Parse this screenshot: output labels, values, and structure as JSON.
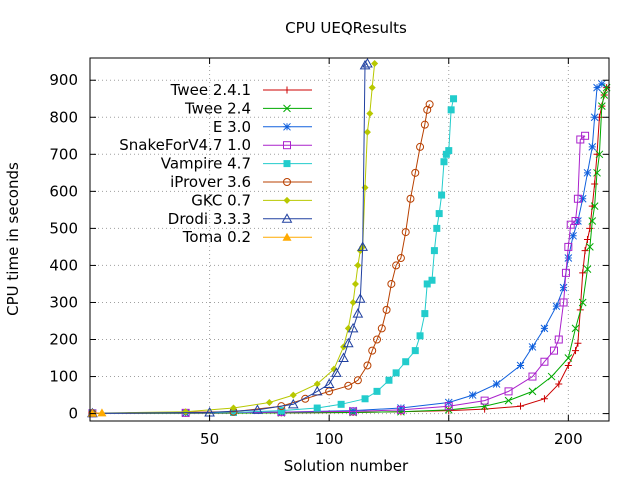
{
  "chart_data": {
    "type": "line",
    "title": "CPU UEQResults",
    "xlabel": "Solution number",
    "ylabel": "CPU time in seconds",
    "xlim": [
      0,
      217
    ],
    "ylim": [
      -20,
      960
    ],
    "x_ticks": [
      50,
      100,
      150,
      200
    ],
    "y_ticks": [
      0,
      100,
      200,
      300,
      400,
      500,
      600,
      700,
      800,
      900
    ],
    "grid": true,
    "legend_position": "top-left",
    "series": [
      {
        "name": "Twee 2.4.1",
        "color": "#cc0000",
        "marker": "plus",
        "points": [
          [
            1,
            1
          ],
          [
            40,
            1
          ],
          [
            80,
            2
          ],
          [
            110,
            3
          ],
          [
            130,
            5
          ],
          [
            150,
            8
          ],
          [
            165,
            12
          ],
          [
            180,
            20
          ],
          [
            190,
            40
          ],
          [
            196,
            80
          ],
          [
            200,
            130
          ],
          [
            203,
            170
          ],
          [
            204,
            190
          ],
          [
            205,
            280
          ],
          [
            206,
            380
          ],
          [
            207,
            440
          ],
          [
            208,
            470
          ],
          [
            209,
            500
          ],
          [
            210,
            560
          ],
          [
            211,
            620
          ],
          [
            212,
            700
          ],
          [
            213,
            800
          ],
          [
            214,
            830
          ],
          [
            215,
            860
          ],
          [
            216,
            880
          ]
        ]
      },
      {
        "name": "Twee 2.4",
        "color": "#00aa00",
        "marker": "x",
        "points": [
          [
            1,
            1
          ],
          [
            40,
            1
          ],
          [
            80,
            2
          ],
          [
            110,
            3
          ],
          [
            130,
            5
          ],
          [
            150,
            10
          ],
          [
            165,
            20
          ],
          [
            175,
            35
          ],
          [
            185,
            60
          ],
          [
            193,
            100
          ],
          [
            200,
            150
          ],
          [
            203,
            230
          ],
          [
            206,
            300
          ],
          [
            208,
            390
          ],
          [
            209,
            450
          ],
          [
            210,
            520
          ],
          [
            211,
            560
          ],
          [
            212,
            650
          ],
          [
            213,
            700
          ],
          [
            214,
            830
          ],
          [
            215,
            860
          ],
          [
            216,
            880
          ]
        ]
      },
      {
        "name": "E 3.0",
        "color": "#1060dd",
        "marker": "star",
        "points": [
          [
            1,
            1
          ],
          [
            40,
            2
          ],
          [
            80,
            4
          ],
          [
            110,
            8
          ],
          [
            130,
            15
          ],
          [
            150,
            30
          ],
          [
            160,
            50
          ],
          [
            170,
            80
          ],
          [
            180,
            130
          ],
          [
            185,
            180
          ],
          [
            190,
            230
          ],
          [
            195,
            290
          ],
          [
            198,
            340
          ],
          [
            200,
            420
          ],
          [
            202,
            480
          ],
          [
            204,
            520
          ],
          [
            206,
            580
          ],
          [
            208,
            650
          ],
          [
            210,
            720
          ],
          [
            211,
            800
          ],
          [
            212,
            880
          ],
          [
            214,
            890
          ]
        ]
      },
      {
        "name": "SnakeForV4.7 1.0",
        "color": "#aa22cc",
        "marker": "square-open",
        "points": [
          [
            1,
            1
          ],
          [
            40,
            2
          ],
          [
            80,
            4
          ],
          [
            110,
            6
          ],
          [
            130,
            10
          ],
          [
            150,
            20
          ],
          [
            165,
            35
          ],
          [
            175,
            60
          ],
          [
            185,
            100
          ],
          [
            190,
            140
          ],
          [
            194,
            170
          ],
          [
            196,
            200
          ],
          [
            198,
            300
          ],
          [
            199,
            380
          ],
          [
            200,
            450
          ],
          [
            201,
            510
          ],
          [
            203,
            520
          ],
          [
            204,
            580
          ],
          [
            205,
            740
          ],
          [
            207,
            750
          ]
        ]
      },
      {
        "name": "Vampire 4.7",
        "color": "#22cccc",
        "marker": "square-filled",
        "points": [
          [
            1,
            1
          ],
          [
            60,
            3
          ],
          [
            80,
            8
          ],
          [
            95,
            15
          ],
          [
            105,
            25
          ],
          [
            115,
            40
          ],
          [
            120,
            60
          ],
          [
            125,
            90
          ],
          [
            128,
            110
          ],
          [
            132,
            140
          ],
          [
            136,
            170
          ],
          [
            138,
            210
          ],
          [
            140,
            270
          ],
          [
            141,
            350
          ],
          [
            143,
            360
          ],
          [
            144,
            440
          ],
          [
            145,
            500
          ],
          [
            146,
            540
          ],
          [
            147,
            590
          ],
          [
            148,
            680
          ],
          [
            149,
            700
          ],
          [
            150,
            710
          ],
          [
            151,
            820
          ],
          [
            152,
            850
          ]
        ]
      },
      {
        "name": "iProver 3.6",
        "color": "#b84000",
        "marker": "circle-open",
        "points": [
          [
            1,
            1
          ],
          [
            60,
            5
          ],
          [
            80,
            20
          ],
          [
            90,
            40
          ],
          [
            100,
            60
          ],
          [
            108,
            75
          ],
          [
            112,
            90
          ],
          [
            116,
            130
          ],
          [
            118,
            170
          ],
          [
            120,
            200
          ],
          [
            122,
            230
          ],
          [
            124,
            280
          ],
          [
            126,
            350
          ],
          [
            128,
            400
          ],
          [
            130,
            420
          ],
          [
            132,
            490
          ],
          [
            134,
            580
          ],
          [
            136,
            650
          ],
          [
            138,
            720
          ],
          [
            140,
            780
          ],
          [
            141,
            820
          ],
          [
            142,
            835
          ]
        ]
      },
      {
        "name": "GKC 0.7",
        "color": "#b8c800",
        "marker": "diamond-filled",
        "points": [
          [
            1,
            1
          ],
          [
            40,
            5
          ],
          [
            60,
            15
          ],
          [
            75,
            30
          ],
          [
            85,
            50
          ],
          [
            95,
            80
          ],
          [
            102,
            120
          ],
          [
            106,
            180
          ],
          [
            108,
            230
          ],
          [
            110,
            300
          ],
          [
            111,
            350
          ],
          [
            112,
            400
          ],
          [
            113,
            440
          ],
          [
            114,
            450
          ],
          [
            115,
            610
          ],
          [
            116,
            760
          ],
          [
            117,
            810
          ],
          [
            118,
            880
          ],
          [
            119,
            945
          ]
        ]
      },
      {
        "name": "Drodi 3.3.3",
        "color": "#2040a0",
        "marker": "triangle-open",
        "points": [
          [
            1,
            1
          ],
          [
            50,
            3
          ],
          [
            70,
            10
          ],
          [
            85,
            25
          ],
          [
            95,
            60
          ],
          [
            100,
            80
          ],
          [
            103,
            110
          ],
          [
            106,
            150
          ],
          [
            108,
            190
          ],
          [
            110,
            230
          ],
          [
            112,
            270
          ],
          [
            113,
            310
          ],
          [
            114,
            450
          ],
          [
            115,
            940
          ],
          [
            116,
            945
          ]
        ]
      },
      {
        "name": "Toma 0.2",
        "color": "#ffaa00",
        "marker": "triangle-filled",
        "points": [
          [
            1,
            1
          ],
          [
            5,
            2
          ]
        ]
      }
    ]
  }
}
